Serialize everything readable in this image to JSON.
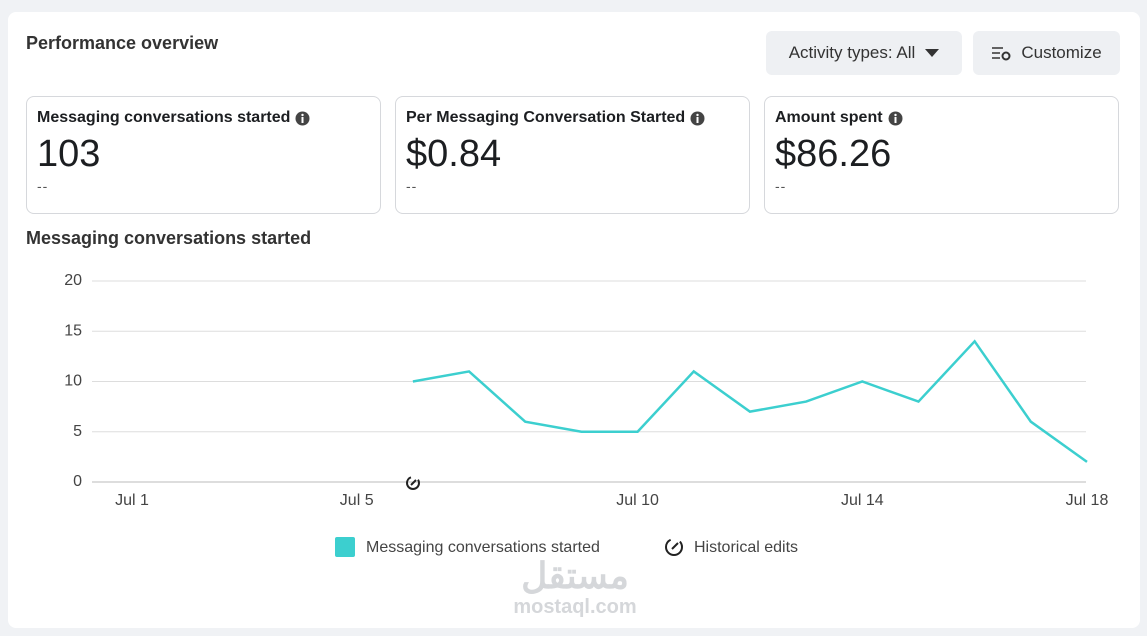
{
  "header": {
    "title": "Performance overview"
  },
  "buttons": [
    {
      "label": "Activity types: All"
    },
    {
      "label": "Customize"
    }
  ],
  "metrics": [
    {
      "title": "Messaging conversations started",
      "value": "103",
      "comparison": "--"
    },
    {
      "title": "Per Messaging Conversation Started",
      "value": "$0.84",
      "comparison": "--"
    },
    {
      "title": "Amount spent",
      "value": "$86.26",
      "comparison": "--"
    }
  ],
  "chart_data": {
    "type": "line",
    "title": "Messaging conversations started",
    "categories": [
      "Jul 1",
      null,
      null,
      null,
      "Jul 5",
      null,
      null,
      null,
      null,
      "Jul 10",
      null,
      null,
      null,
      "Jul 14",
      null,
      null,
      null,
      "Jul 18"
    ],
    "series": [
      {
        "name": "Messaging conversations started",
        "color": "#3ccfcf",
        "values": [
          null,
          null,
          null,
          null,
          null,
          10,
          11,
          6,
          5,
          5,
          11,
          7,
          8,
          10,
          8,
          14,
          6,
          2
        ]
      }
    ],
    "annotation_legend": "Historical edits",
    "ylim": [
      0,
      20
    ],
    "yticks": [
      0,
      5,
      10,
      15,
      20
    ],
    "grid": true
  },
  "watermark": {
    "arabic": "مستقل",
    "latin": "mostaql.com"
  }
}
